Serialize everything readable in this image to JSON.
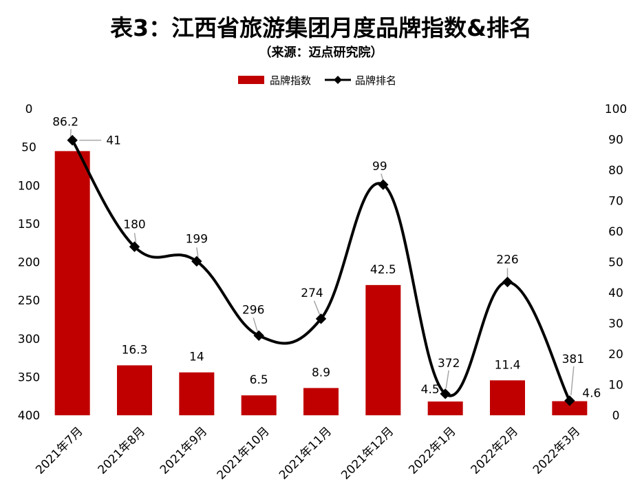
{
  "chart_data": {
    "title": "表3：江西省旅游集团月度品牌指数&排名",
    "subtitle": "（来源：迈点研究院）",
    "type": "bar+line",
    "categories": [
      "2021年7月",
      "2021年8月",
      "2021年9月",
      "2021年10月",
      "2021年11月",
      "2021年12月",
      "2022年1月",
      "2022年2月",
      "2022年3月"
    ],
    "series": [
      {
        "name": "品牌指数",
        "type": "bar",
        "axis": "right",
        "values": [
          86.2,
          16.3,
          14,
          6.5,
          8.9,
          42.5,
          4.5,
          11.4,
          4.6
        ],
        "labels": [
          "86.2",
          "16.3",
          "14",
          "6.5",
          "8.9",
          "42.5",
          "4.5",
          "11.4",
          "4.6"
        ],
        "color": "#C00000"
      },
      {
        "name": "品牌排名",
        "type": "line",
        "axis": "left",
        "smooth": true,
        "values": [
          41,
          180,
          199,
          296,
          274,
          99,
          372,
          226,
          381
        ],
        "labels": [
          "41",
          "180",
          "199",
          "296",
          "274",
          "99",
          "372",
          "226",
          "381"
        ],
        "color": "#000000",
        "marker": "diamond"
      }
    ],
    "left_axis": {
      "min": 0,
      "max": 400,
      "reversed": true,
      "ticks": [
        "0",
        "50",
        "100",
        "150",
        "200",
        "250",
        "300",
        "350",
        "400"
      ]
    },
    "right_axis": {
      "min": 0,
      "max": 100,
      "ticks": [
        "0",
        "10",
        "20",
        "30",
        "40",
        "50",
        "60",
        "70",
        "80",
        "90",
        "100"
      ]
    },
    "legend": {
      "position": "top",
      "items": [
        "品牌指数",
        "品牌排名"
      ]
    },
    "grid": false
  }
}
